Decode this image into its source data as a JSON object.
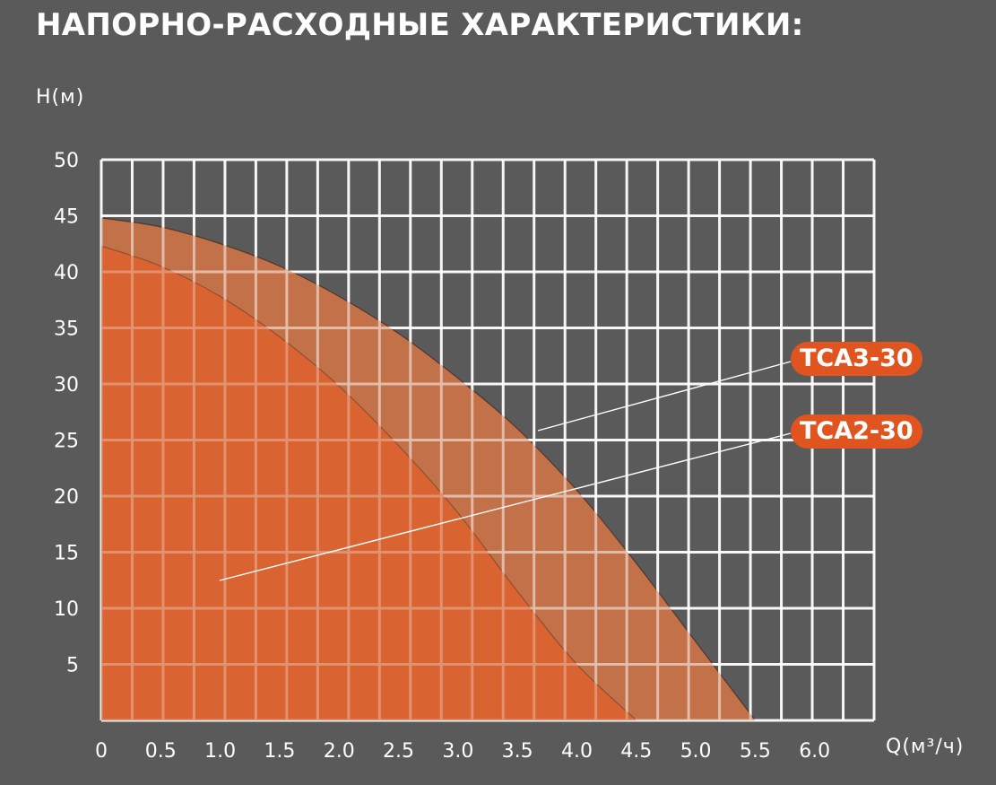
{
  "title": "НАПОРНО-РАСХОДНЫЕ ХАРАКТЕРИСТИКИ:",
  "chart_data": {
    "type": "area",
    "title": "НАПОРНО-РАСХОДНЫЕ ХАРАКТЕРИСТИКИ:",
    "xlabel": "Q(м³/ч)",
    "ylabel": "H(м)",
    "xlim": [
      0,
      6.5
    ],
    "ylim": [
      0,
      50
    ],
    "grid": true,
    "x_ticks": [
      "0",
      "0.5",
      "1.0",
      "1.5",
      "2.0",
      "2.5",
      "3.0",
      "3.5",
      "4.0",
      "4.5",
      "5.0",
      "5.5",
      "6.0"
    ],
    "y_ticks": [
      "5",
      "10",
      "15",
      "20",
      "25",
      "30",
      "35",
      "40",
      "45",
      "50"
    ],
    "series": [
      {
        "name": "TCA3-30",
        "color": "#c4714a",
        "x": [
          0,
          0.5,
          1.0,
          1.5,
          2.0,
          2.5,
          3.0,
          3.5,
          4.0,
          4.5,
          5.0,
          5.5
        ],
        "y": [
          44.8,
          44.0,
          42.5,
          40.5,
          37.8,
          34.5,
          30.5,
          26.0,
          20.5,
          14.0,
          7.0,
          0
        ]
      },
      {
        "name": "TCA2-30",
        "color": "#e0602a",
        "x": [
          0,
          0.5,
          1.0,
          1.5,
          2.0,
          2.5,
          3.0,
          3.5,
          4.0,
          4.5
        ],
        "y": [
          42.3,
          40.5,
          37.8,
          34.2,
          29.8,
          24.5,
          18.5,
          11.5,
          5.0,
          0
        ]
      }
    ]
  }
}
